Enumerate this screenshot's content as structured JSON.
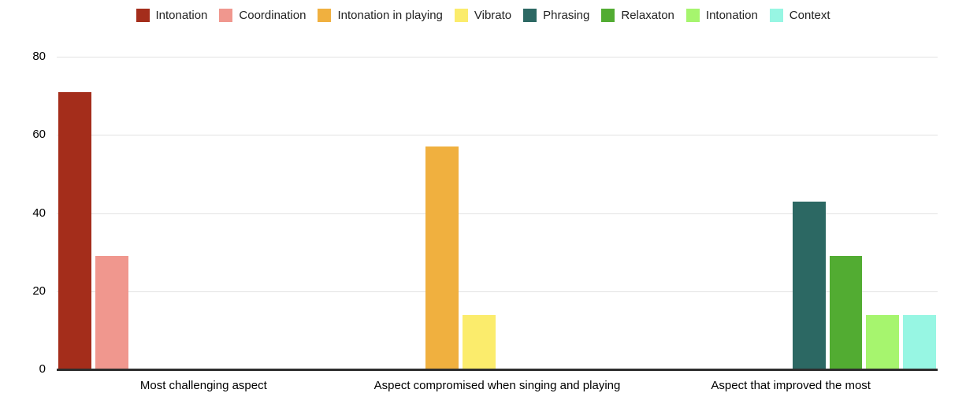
{
  "chart_data": {
    "type": "bar",
    "title": "",
    "xlabel": "",
    "ylabel": "",
    "categories": [
      "Most challenging aspect",
      "Aspect compromised when singing and playing",
      "Aspect that improved the most"
    ],
    "series": [
      {
        "name": "Intonation",
        "color": "#A42D1B",
        "values": [
          71,
          0,
          0
        ]
      },
      {
        "name": "Coordination",
        "color": "#F0978E",
        "values": [
          29,
          0,
          0
        ]
      },
      {
        "name": "Intonation in playing",
        "color": "#F0B03F",
        "values": [
          0,
          57,
          0
        ]
      },
      {
        "name": "Vibrato",
        "color": "#FBEC6C",
        "values": [
          0,
          14,
          0
        ]
      },
      {
        "name": "Phrasing",
        "color": "#2C6863",
        "values": [
          0,
          0,
          43
        ]
      },
      {
        "name": "Relaxaton",
        "color": "#52AC32",
        "values": [
          0,
          0,
          29
        ]
      },
      {
        "name": "Intonation",
        "color": "#A6F56E",
        "values": [
          0,
          0,
          14
        ]
      },
      {
        "name": "Context",
        "color": "#97F6E3",
        "values": [
          0,
          0,
          14
        ]
      }
    ],
    "ylim": [
      0,
      80
    ],
    "yticks": [
      0,
      20,
      40,
      60,
      80
    ],
    "grid": true,
    "legend_position": "top"
  },
  "colors": {
    "background": "#FFFFFF",
    "gridline": "#E2E2E2",
    "axis_baseline": "#2D2D2D",
    "text": "#000000"
  }
}
